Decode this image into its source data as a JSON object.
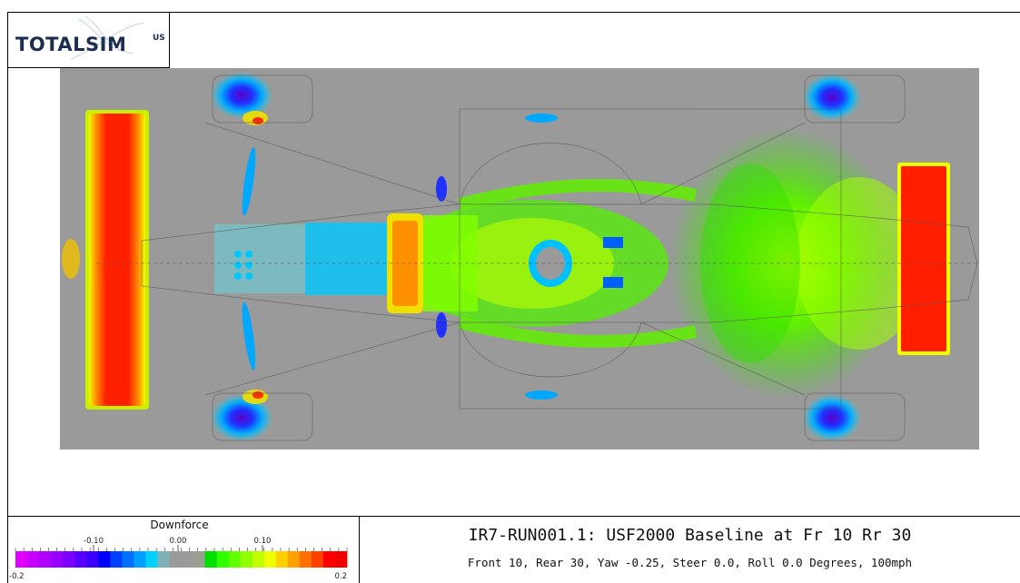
{
  "logo": {
    "word": "TOTALSIM",
    "superscript": "US"
  },
  "title": {
    "main": "IR7-RUN001.1: USF2000 Baseline at Fr 10 Rr 30",
    "sub": "Front 10, Rear 30, Yaw -0.25, Steer 0.0, Roll 0.0 Degrees, 100mph"
  },
  "legend": {
    "title": "Downforce",
    "ticks": [
      "-0.10",
      "0.00",
      "0.10"
    ],
    "min_label": "-0.2",
    "max_label": "0.2",
    "colors": [
      "#e000ff",
      "#c800ff",
      "#b000ff",
      "#9a00ff",
      "#7f00ff",
      "#5a00ff",
      "#3c00ff",
      "#0000ff",
      "#0040ff",
      "#0070ff",
      "#00a0ff",
      "#00d0ff",
      "#80b0b8",
      "#9a9a9a",
      "#9a9a9a",
      "#9aa090",
      "#00e000",
      "#30ff00",
      "#60ff00",
      "#90ff00",
      "#c0ff00",
      "#f0ff00",
      "#ffd000",
      "#ffa000",
      "#ff7000",
      "#ff4000",
      "#ff0000",
      "#f00000"
    ]
  },
  "colors": {
    "plot_background": "#9a9a9a",
    "strong_positive": "#ff1e00",
    "negative": "#1a2dff",
    "logo": "#1b2e4f"
  }
}
